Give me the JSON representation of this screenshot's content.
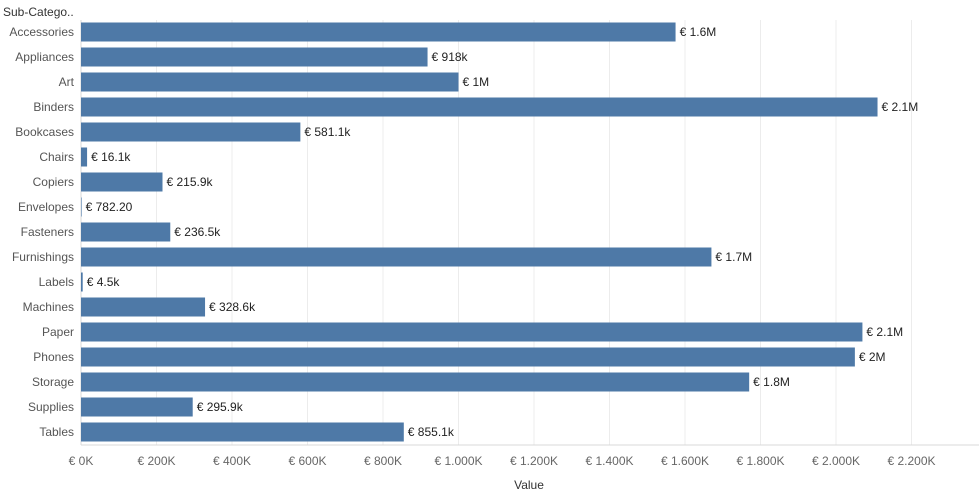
{
  "chart_data": {
    "type": "bar",
    "orientation": "horizontal",
    "row_header": "Sub-Catego..",
    "xlabel": "Value",
    "bar_color": "#4e79a7",
    "grid": true,
    "xlim": [
      0,
      2300000
    ],
    "x_ticks": [
      0,
      200000,
      400000,
      600000,
      800000,
      1000000,
      1200000,
      1400000,
      1600000,
      1800000,
      2000000,
      2200000
    ],
    "x_tick_labels": [
      "€ 0K",
      "€ 200K",
      "€ 400K",
      "€ 600K",
      "€ 800K",
      "€ 1.000K",
      "€ 1.200K",
      "€ 1.400K",
      "€ 1.600K",
      "€ 1.800K",
      "€ 2.000K",
      "€ 2.200K"
    ],
    "categories": [
      "Accessories",
      "Appliances",
      "Art",
      "Binders",
      "Bookcases",
      "Chairs",
      "Copiers",
      "Envelopes",
      "Fasteners",
      "Furnishings",
      "Labels",
      "Machines",
      "Paper",
      "Phones",
      "Storage",
      "Supplies",
      "Tables"
    ],
    "values": [
      1575000,
      918000,
      1000000,
      2110000,
      581100,
      16100,
      215900,
      782.2,
      236500,
      1670000,
      4500,
      328600,
      2070000,
      2050000,
      1770000,
      295900,
      855100
    ],
    "value_labels": [
      "€ 1.6M",
      "€ 918k",
      "€ 1M",
      "€ 2.1M",
      "€ 581.1k",
      "€ 16.1k",
      "€ 215.9k",
      "€ 782.20",
      "€ 236.5k",
      "€ 1.7M",
      "€ 4.5k",
      "€ 328.6k",
      "€ 2.1M",
      "€ 2M",
      "€ 1.8M",
      "€ 295.9k",
      "€ 855.1k"
    ]
  }
}
